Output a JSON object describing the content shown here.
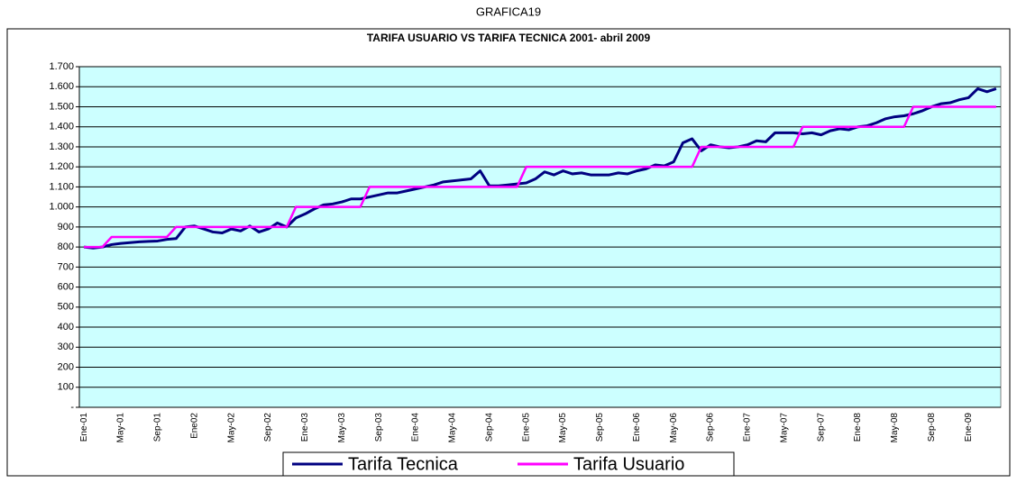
{
  "page_title": "GRAFICA19",
  "chart_data": {
    "type": "line",
    "title": "TARIFA USUARIO VS TARIFA TECNICA 2001- abril 2009",
    "categories": [
      "Ene-01",
      null,
      null,
      null,
      "May-01",
      null,
      null,
      null,
      "Sep-01",
      null,
      null,
      null,
      "Ene02",
      null,
      null,
      null,
      "May-02",
      null,
      null,
      null,
      "Sep-02",
      null,
      null,
      null,
      "Ene-03",
      null,
      null,
      null,
      "May-03",
      null,
      null,
      null,
      "Sep-03",
      null,
      null,
      null,
      "Ene-04",
      null,
      null,
      null,
      "May-04",
      null,
      null,
      null,
      "Sep-04",
      null,
      null,
      null,
      "Ene-05",
      null,
      null,
      null,
      "May-05",
      null,
      null,
      null,
      "Sep-05",
      null,
      null,
      null,
      "Ene-06",
      null,
      null,
      null,
      "May-06",
      null,
      null,
      null,
      "Sep-06",
      null,
      null,
      null,
      "Ene-07",
      null,
      null,
      null,
      "May-07",
      null,
      null,
      null,
      "Sep-07",
      null,
      null,
      null,
      "Ene-08",
      null,
      null,
      null,
      "May-08",
      null,
      null,
      null,
      "Sep-08",
      null,
      null,
      null,
      "Ene-09",
      null,
      null,
      null
    ],
    "series": [
      {
        "name": "Tarifa Tecnica",
        "color": "#000080",
        "values": [
          800,
          795,
          800,
          812,
          818,
          822,
          826,
          828,
          830,
          838,
          842,
          900,
          905,
          890,
          875,
          870,
          890,
          880,
          905,
          875,
          890,
          920,
          900,
          945,
          965,
          990,
          1010,
          1015,
          1025,
          1040,
          1040,
          1050,
          1060,
          1070,
          1070,
          1080,
          1090,
          1100,
          1110,
          1125,
          1130,
          1135,
          1140,
          1180,
          1105,
          1105,
          1110,
          1115,
          1120,
          1140,
          1175,
          1160,
          1180,
          1165,
          1170,
          1160,
          1160,
          1160,
          1170,
          1165,
          1180,
          1190,
          1210,
          1205,
          1225,
          1320,
          1340,
          1280,
          1310,
          1300,
          1295,
          1300,
          1310,
          1330,
          1325,
          1370,
          1370,
          1370,
          1365,
          1370,
          1360,
          1380,
          1390,
          1385,
          1400,
          1405,
          1420,
          1440,
          1450,
          1455,
          1465,
          1480,
          1500,
          1515,
          1520,
          1535,
          1545,
          1590,
          1575,
          1590
        ]
      },
      {
        "name": "Tarifa Usuario",
        "color": "#ff00ff",
        "values": [
          800,
          800,
          800,
          850,
          850,
          850,
          850,
          850,
          850,
          850,
          900,
          900,
          900,
          900,
          900,
          900,
          900,
          900,
          900,
          900,
          900,
          900,
          900,
          1000,
          1000,
          1000,
          1000,
          1000,
          1000,
          1000,
          1000,
          1100,
          1100,
          1100,
          1100,
          1100,
          1100,
          1100,
          1100,
          1100,
          1100,
          1100,
          1100,
          1100,
          1100,
          1100,
          1100,
          1100,
          1200,
          1200,
          1200,
          1200,
          1200,
          1200,
          1200,
          1200,
          1200,
          1200,
          1200,
          1200,
          1200,
          1200,
          1200,
          1200,
          1200,
          1200,
          1200,
          1300,
          1300,
          1300,
          1300,
          1300,
          1300,
          1300,
          1300,
          1300,
          1300,
          1300,
          1400,
          1400,
          1400,
          1400,
          1400,
          1400,
          1400,
          1400,
          1400,
          1400,
          1400,
          1400,
          1500,
          1500,
          1500,
          1500,
          1500,
          1500,
          1500,
          1500,
          1500,
          1500
        ]
      }
    ],
    "ylim": [
      0,
      1700
    ],
    "yticks": [
      {
        "value": 0,
        "label": "-"
      },
      100,
      200,
      300,
      400,
      500,
      600,
      700,
      800,
      900,
      {
        "value": 1000,
        "label": "1.000"
      },
      {
        "value": 1100,
        "label": "1.100"
      },
      {
        "value": 1200,
        "label": "1.200"
      },
      {
        "value": 1300,
        "label": "1.300"
      },
      {
        "value": 1400,
        "label": "1.400"
      },
      {
        "value": 1500,
        "label": "1.500"
      },
      {
        "value": 1600,
        "label": "1.600"
      },
      {
        "value": 1700,
        "label": "1.700"
      }
    ],
    "grid": true,
    "legend": "bottom"
  }
}
